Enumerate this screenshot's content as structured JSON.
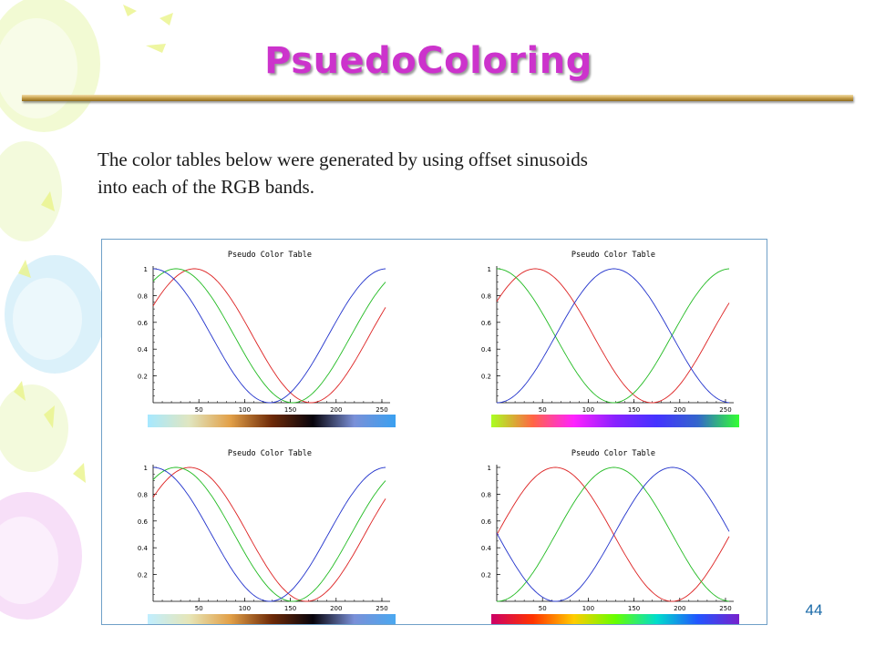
{
  "slide": {
    "title": "PsuedoColoring",
    "body_lines": [
      "The color tables below were generated by using offset sinusoids",
      "into each of the RGB bands."
    ],
    "page_number": "44"
  },
  "colors": {
    "title": "#cc33cc",
    "rule": "#c9a24d",
    "red": "#dd2222",
    "green": "#22bb22",
    "blue": "#2233cc",
    "panel_border": "#6fa0c8"
  },
  "chart_data": [
    {
      "type": "line",
      "title": "Pseudo Color Table",
      "xlim": [
        0,
        255
      ],
      "ylim": [
        0,
        1
      ],
      "xticks": [
        "50",
        "100",
        "150",
        "200",
        "250"
      ],
      "yticks": [
        "0.2",
        "0.4",
        "0.6",
        "0.8",
        "1"
      ],
      "series": [
        {
          "color": "red",
          "peak_x": 45,
          "period": 255,
          "values_at_0": 0.5
        },
        {
          "color": "green",
          "peak_x": 25,
          "period": 255,
          "values_at_0": 0.86
        },
        {
          "color": "blue",
          "peak_x": 0,
          "period": 255,
          "values_at_0": 1.0
        }
      ],
      "colorbar": [
        "#a6e8ff",
        "#e0e6c0",
        "#e2a048",
        "#6e2a08",
        "#08040c",
        "#7a90d8",
        "#3aa0f0"
      ]
    },
    {
      "type": "line",
      "title": "Pseudo Color Table",
      "xlim": [
        0,
        255
      ],
      "ylim": [
        0,
        1
      ],
      "xticks": [
        "50",
        "100",
        "150",
        "200",
        "250"
      ],
      "yticks": [
        "0.2",
        "0.4",
        "0.6",
        "0.8",
        "1"
      ],
      "series": [
        {
          "color": "red",
          "peak_x": 42,
          "period": 255,
          "values_at_0": 0.5
        },
        {
          "color": "green",
          "peak_x": 0,
          "period": 255,
          "values_at_0": 1.0
        },
        {
          "color": "blue",
          "peak_x": 128,
          "period": 255,
          "values_at_0": 0.0
        }
      ],
      "colorbar": [
        "#aaff22",
        "#ff6644",
        "#ff22ff",
        "#8822ff",
        "#4433ff",
        "#3366cc",
        "#33ff33"
      ]
    },
    {
      "type": "line",
      "title": "Pseudo Color Table",
      "xlim": [
        0,
        255
      ],
      "ylim": [
        0,
        1
      ],
      "xticks": [
        "50",
        "100",
        "150",
        "200",
        "250"
      ],
      "yticks": [
        "0.2",
        "0.4",
        "0.6",
        "0.8",
        "1"
      ],
      "series": [
        {
          "color": "red",
          "peak_x": 40,
          "period": 255,
          "values_at_0": 0.7
        },
        {
          "color": "green",
          "peak_x": 25,
          "period": 255,
          "values_at_0": 0.86
        },
        {
          "color": "blue",
          "peak_x": 0,
          "period": 255,
          "values_at_0": 1.0
        }
      ],
      "colorbar": [
        "#c0eeff",
        "#e6e6b8",
        "#e2a048",
        "#6e2a08",
        "#08040c",
        "#7a90d8",
        "#4aa8f0"
      ]
    },
    {
      "type": "line",
      "title": "Pseudo Color Table",
      "xlim": [
        0,
        255
      ],
      "ylim": [
        0,
        1
      ],
      "xticks": [
        "50",
        "100",
        "150",
        "200",
        "250"
      ],
      "yticks": [
        "0.2",
        "0.4",
        "0.6",
        "0.8",
        "1"
      ],
      "series": [
        {
          "color": "red",
          "peak_x": 64,
          "period": 255,
          "values_at_0": 0.5
        },
        {
          "color": "green",
          "peak_x": 128,
          "period": 255,
          "values_at_0": 0.0
        },
        {
          "color": "blue",
          "peak_x": 192,
          "period": 255,
          "values_at_0": 0.5
        }
      ],
      "colorbar": [
        "#cc0066",
        "#ff3300",
        "#ffcc00",
        "#66ff00",
        "#00ddcc",
        "#2255ff",
        "#7722cc"
      ]
    }
  ]
}
